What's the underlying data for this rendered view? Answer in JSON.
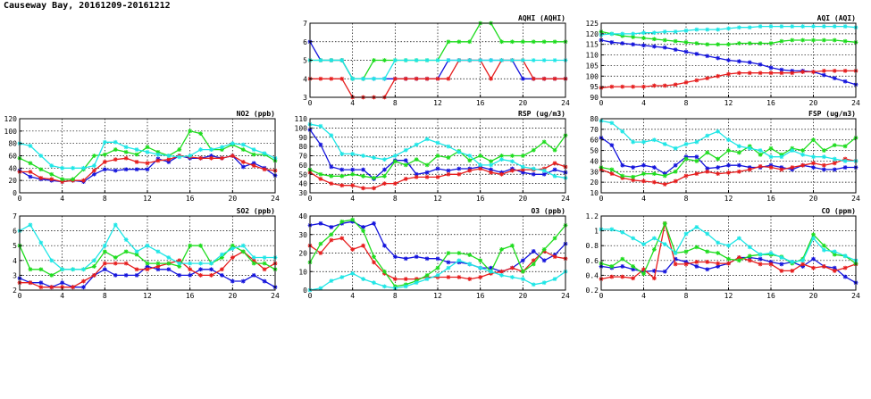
{
  "page_title": "Causeway Bay, 20161209-20161212",
  "colors": {
    "blue": "#1414dc",
    "red": "#e61e1e",
    "green": "#1edc1e",
    "cyan": "#1ee6e6"
  },
  "chart_data": [
    {
      "id": "aqhi",
      "type": "line",
      "title": "AQHI (AQHI)",
      "x_ticks": [
        0,
        4,
        8,
        12,
        16,
        20,
        24
      ],
      "xlim": [
        0,
        24
      ],
      "y_ticks": [
        3,
        4,
        5,
        6,
        7
      ],
      "ylim": [
        3,
        7
      ],
      "grid": true,
      "series": [
        {
          "color": "blue",
          "values": [
            6,
            5,
            5,
            5,
            4,
            4,
            4,
            4,
            4,
            4,
            4,
            4,
            4,
            5,
            5,
            5,
            5,
            5,
            5,
            5,
            4,
            4,
            4,
            4,
            4
          ]
        },
        {
          "color": "red",
          "values": [
            4,
            4,
            4,
            4,
            3,
            3,
            3,
            3,
            4,
            4,
            4,
            4,
            4,
            4,
            5,
            5,
            5,
            4,
            5,
            5,
            5,
            4,
            4,
            4,
            4
          ]
        },
        {
          "color": "green",
          "values": [
            5,
            5,
            5,
            5,
            4,
            4,
            5,
            5,
            5,
            5,
            5,
            5,
            5,
            6,
            6,
            6,
            7,
            7,
            6,
            6,
            6,
            6,
            6,
            6,
            6
          ]
        },
        {
          "color": "cyan",
          "values": [
            5,
            5,
            5,
            5,
            4,
            4,
            4,
            4,
            5,
            5,
            5,
            5,
            5,
            5,
            5,
            5,
            5,
            5,
            5,
            5,
            5,
            5,
            5,
            5,
            5
          ]
        }
      ]
    },
    {
      "id": "aqi",
      "type": "line",
      "title": "AQI (AQI)",
      "x_ticks": [
        0,
        4,
        8,
        12,
        16,
        20,
        24
      ],
      "xlim": [
        0,
        24
      ],
      "y_ticks": [
        90,
        95,
        100,
        105,
        110,
        115,
        120,
        125
      ],
      "ylim": [
        90,
        125
      ],
      "grid": true,
      "series": [
        {
          "color": "blue",
          "values": [
            117,
            116,
            115.5,
            115,
            114.5,
            114,
            113.5,
            112.5,
            111.5,
            110.5,
            109.5,
            108.5,
            107.5,
            107,
            106.5,
            105.5,
            104,
            103,
            102.5,
            102.5,
            102,
            100.5,
            99,
            97.5,
            96
          ]
        },
        {
          "color": "red",
          "values": [
            94.5,
            95,
            95,
            95,
            95,
            95.5,
            95.5,
            96,
            97,
            98,
            99,
            100,
            101,
            101.5,
            101.5,
            101.5,
            101.5,
            101.5,
            101.5,
            102,
            102,
            102.5,
            102.5,
            102.5,
            102.5
          ]
        },
        {
          "color": "green",
          "values": [
            121,
            120,
            119,
            118.5,
            118,
            117.5,
            117,
            116.5,
            116,
            115.5,
            115,
            115,
            115,
            115.5,
            115.5,
            115.5,
            115.5,
            116.5,
            117,
            117,
            117,
            117,
            117,
            116.5,
            116
          ]
        },
        {
          "color": "cyan",
          "values": [
            119.5,
            120,
            120,
            120,
            120.5,
            120.5,
            121,
            121,
            121.5,
            122,
            122,
            122,
            122.5,
            123,
            123,
            123.5,
            123.5,
            123.5,
            123.5,
            123.5,
            123.5,
            123.5,
            123.5,
            123.5,
            123
          ]
        }
      ]
    },
    {
      "id": "no2",
      "type": "line",
      "title": "NO2 (ppb)",
      "x_ticks": [
        0,
        4,
        8,
        12,
        16,
        20,
        24
      ],
      "xlim": [
        0,
        24
      ],
      "y_ticks": [
        0,
        20,
        40,
        60,
        80,
        100,
        120
      ],
      "ylim": [
        0,
        120
      ],
      "grid": true,
      "series": [
        {
          "color": "blue",
          "values": [
            36,
            26,
            22,
            20,
            18,
            20,
            18,
            30,
            38,
            36,
            38,
            38,
            38,
            55,
            50,
            60,
            56,
            56,
            60,
            56,
            60,
            42,
            48,
            40,
            28
          ]
        },
        {
          "color": "red",
          "values": [
            34,
            34,
            24,
            22,
            18,
            20,
            20,
            36,
            50,
            54,
            56,
            50,
            48,
            52,
            54,
            60,
            58,
            56,
            56,
            56,
            60,
            50,
            44,
            38,
            36
          ]
        },
        {
          "color": "green",
          "values": [
            56,
            48,
            38,
            30,
            22,
            22,
            38,
            60,
            62,
            70,
            66,
            62,
            74,
            66,
            60,
            70,
            100,
            96,
            70,
            70,
            78,
            70,
            62,
            62,
            52
          ]
        },
        {
          "color": "cyan",
          "values": [
            80,
            76,
            60,
            44,
            40,
            40,
            40,
            44,
            82,
            82,
            74,
            70,
            66,
            62,
            60,
            58,
            60,
            70,
            70,
            74,
            80,
            78,
            70,
            64,
            56
          ]
        }
      ]
    },
    {
      "id": "rsp",
      "type": "line",
      "title": "RSP (ug/m3)",
      "x_ticks": [
        0,
        4,
        8,
        12,
        16,
        20,
        24
      ],
      "xlim": [
        0,
        24
      ],
      "y_ticks": [
        30,
        40,
        50,
        60,
        70,
        80,
        90,
        100,
        110
      ],
      "ylim": [
        30,
        110
      ],
      "grid": true,
      "series": [
        {
          "color": "blue",
          "values": [
            98,
            82,
            58,
            55,
            55,
            55,
            45,
            55,
            65,
            65,
            50,
            52,
            56,
            54,
            56,
            56,
            58,
            55,
            52,
            56,
            52,
            50,
            50,
            55,
            52
          ]
        },
        {
          "color": "red",
          "values": [
            52,
            45,
            40,
            38,
            38,
            35,
            35,
            40,
            40,
            45,
            47,
            47,
            47,
            50,
            50,
            54,
            56,
            52,
            50,
            54,
            55,
            55,
            56,
            62,
            58
          ]
        },
        {
          "color": "green",
          "values": [
            55,
            50,
            48,
            48,
            50,
            48,
            46,
            48,
            64,
            60,
            66,
            60,
            70,
            68,
            75,
            65,
            70,
            64,
            70,
            70,
            70,
            76,
            85,
            76,
            92
          ]
        },
        {
          "color": "cyan",
          "values": [
            104,
            102,
            92,
            72,
            72,
            70,
            68,
            66,
            70,
            76,
            82,
            88,
            84,
            80,
            74,
            70,
            60,
            60,
            66,
            64,
            58,
            56,
            54,
            48,
            46
          ]
        }
      ]
    },
    {
      "id": "fsp",
      "type": "line",
      "title": "FSP (ug/m3)",
      "x_ticks": [
        0,
        4,
        8,
        12,
        16,
        20,
        24
      ],
      "xlim": [
        0,
        24
      ],
      "y_ticks": [
        10,
        20,
        30,
        40,
        50,
        60,
        70,
        80
      ],
      "ylim": [
        10,
        80
      ],
      "grid": true,
      "series": [
        {
          "color": "blue",
          "values": [
            62,
            55,
            36,
            34,
            36,
            34,
            28,
            36,
            44,
            44,
            33,
            34,
            36,
            36,
            34,
            34,
            36,
            34,
            32,
            36,
            34,
            32,
            32,
            34,
            34
          ]
        },
        {
          "color": "red",
          "values": [
            32,
            28,
            24,
            22,
            21,
            20,
            18,
            21,
            26,
            28,
            30,
            28,
            29,
            30,
            32,
            35,
            34,
            32,
            34,
            36,
            38,
            36,
            38,
            42,
            40
          ]
        },
        {
          "color": "green",
          "values": [
            34,
            32,
            26,
            25,
            28,
            28,
            26,
            30,
            42,
            40,
            48,
            42,
            50,
            48,
            54,
            46,
            52,
            46,
            52,
            50,
            60,
            50,
            55,
            54,
            62
          ]
        },
        {
          "color": "cyan",
          "values": [
            78,
            76,
            68,
            58,
            58,
            60,
            56,
            52,
            56,
            58,
            64,
            68,
            60,
            54,
            52,
            50,
            44,
            44,
            50,
            46,
            44,
            44,
            42,
            40,
            40
          ]
        }
      ]
    },
    {
      "id": "so2",
      "type": "line",
      "title": "SO2 (ppb)",
      "x_ticks": [
        0,
        4,
        8,
        12,
        16,
        20,
        24
      ],
      "xlim": [
        0,
        24
      ],
      "y_ticks": [
        2,
        3,
        4,
        5,
        6,
        7
      ],
      "ylim": [
        2,
        7
      ],
      "grid": true,
      "series": [
        {
          "color": "blue",
          "values": [
            2.8,
            2.5,
            2.5,
            2.2,
            2.5,
            2.2,
            2.2,
            3.0,
            3.4,
            3.0,
            3.0,
            3.0,
            3.6,
            3.4,
            3.4,
            3.0,
            3.0,
            3.4,
            3.4,
            3.0,
            2.6,
            2.6,
            3.0,
            2.6,
            2.2
          ]
        },
        {
          "color": "red",
          "values": [
            2.5,
            2.5,
            2.2,
            2.2,
            2.2,
            2.2,
            2.6,
            3.0,
            3.8,
            3.8,
            3.8,
            3.4,
            3.4,
            3.6,
            3.8,
            4.0,
            3.4,
            3.0,
            3.0,
            3.4,
            4.2,
            4.6,
            4.0,
            3.4,
            3.8
          ]
        },
        {
          "color": "green",
          "values": [
            5.0,
            3.4,
            3.4,
            3.0,
            3.4,
            3.4,
            3.4,
            3.6,
            4.6,
            4.2,
            4.6,
            4.4,
            3.8,
            3.8,
            3.8,
            3.6,
            5.0,
            5.0,
            3.8,
            4.2,
            5.0,
            4.6,
            3.8,
            3.8,
            3.4
          ]
        },
        {
          "color": "cyan",
          "values": [
            6.0,
            6.4,
            5.2,
            4.0,
            3.4,
            3.4,
            3.4,
            4.0,
            5.0,
            6.4,
            5.4,
            4.6,
            5.0,
            4.6,
            4.2,
            3.8,
            3.8,
            3.8,
            3.8,
            4.4,
            4.8,
            5.0,
            4.2,
            4.2,
            4.2
          ]
        }
      ]
    },
    {
      "id": "o3",
      "type": "line",
      "title": "O3 (ppb)",
      "x_ticks": [
        0,
        4,
        8,
        12,
        16,
        20,
        24
      ],
      "xlim": [
        0,
        24
      ],
      "y_ticks": [
        0,
        10,
        20,
        30,
        40
      ],
      "ylim": [
        0,
        40
      ],
      "grid": true,
      "series": [
        {
          "color": "blue",
          "values": [
            35,
            36,
            34,
            36,
            37,
            34,
            36,
            24,
            18,
            17,
            18,
            17,
            17,
            15,
            15,
            14,
            12,
            12,
            10,
            12,
            16,
            21,
            16,
            19,
            25
          ]
        },
        {
          "color": "red",
          "values": [
            24,
            20,
            27,
            28,
            22,
            24,
            15,
            9,
            6,
            6,
            6,
            7,
            7,
            7,
            7,
            6,
            7,
            9,
            10,
            12,
            10,
            16,
            21,
            18,
            17
          ]
        },
        {
          "color": "green",
          "values": [
            15,
            25,
            30,
            37,
            38,
            32,
            18,
            10,
            2,
            3,
            5,
            8,
            12,
            20,
            20,
            19,
            16,
            10,
            22,
            24,
            10,
            14,
            22,
            28,
            35
          ]
        },
        {
          "color": "cyan",
          "values": [
            0,
            1,
            5,
            7,
            9,
            6,
            4,
            2,
            1,
            2,
            4,
            6,
            8,
            12,
            16,
            14,
            12,
            10,
            8,
            7,
            6,
            3,
            4,
            6,
            10
          ]
        }
      ]
    },
    {
      "id": "co",
      "type": "line",
      "title": "CO (ppm)",
      "x_ticks": [
        0,
        4,
        8,
        12,
        16,
        20,
        24
      ],
      "xlim": [
        0,
        24
      ],
      "y_ticks": [
        0.2,
        0.4,
        0.6,
        0.8,
        1.0,
        1.2
      ],
      "ylim": [
        0.2,
        1.2
      ],
      "grid": true,
      "series": [
        {
          "color": "blue",
          "values": [
            0.52,
            0.5,
            0.52,
            0.48,
            0.45,
            0.46,
            0.45,
            0.62,
            0.58,
            0.52,
            0.48,
            0.52,
            0.56,
            0.64,
            0.64,
            0.62,
            0.58,
            0.55,
            0.58,
            0.52,
            0.62,
            0.52,
            0.5,
            0.38,
            0.3
          ]
        },
        {
          "color": "red",
          "values": [
            0.35,
            0.38,
            0.38,
            0.36,
            0.48,
            0.36,
            1.1,
            0.55,
            0.55,
            0.58,
            0.58,
            0.56,
            0.56,
            0.64,
            0.6,
            0.55,
            0.55,
            0.46,
            0.46,
            0.55,
            0.5,
            0.52,
            0.46,
            0.5,
            0.55
          ]
        },
        {
          "color": "green",
          "values": [
            0.56,
            0.52,
            0.62,
            0.52,
            0.42,
            0.75,
            1.1,
            0.7,
            0.72,
            0.78,
            0.72,
            0.7,
            0.62,
            0.6,
            0.66,
            0.68,
            0.68,
            0.65,
            0.56,
            0.62,
            0.95,
            0.8,
            0.68,
            0.66,
            0.56
          ]
        },
        {
          "color": "cyan",
          "values": [
            1.02,
            1.02,
            0.98,
            0.9,
            0.82,
            0.9,
            0.82,
            0.7,
            0.96,
            1.05,
            0.96,
            0.84,
            0.8,
            0.9,
            0.78,
            0.68,
            0.7,
            0.64,
            0.58,
            0.6,
            0.9,
            0.74,
            0.72,
            0.66,
            0.6
          ]
        }
      ]
    }
  ]
}
